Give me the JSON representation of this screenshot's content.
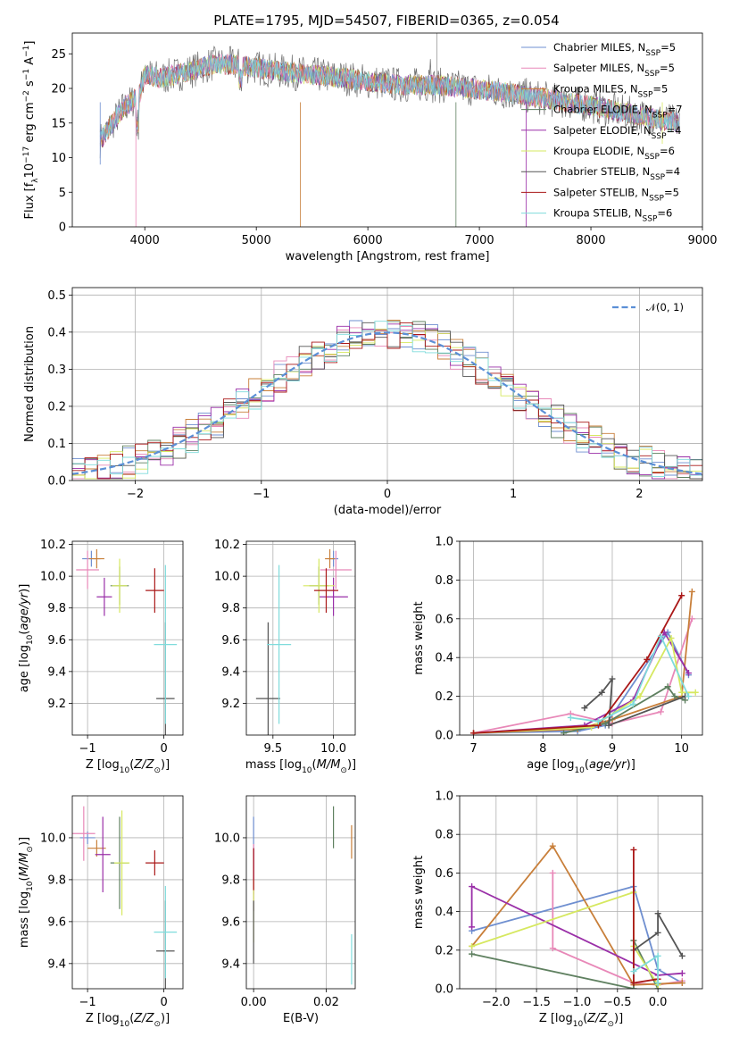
{
  "title": "PLATE=1795, MJD=54507, FIBERID=0365, z=0.054",
  "colors": [
    "#6f8fd0",
    "#e888b8",
    "#c87f3a",
    "#5f8060",
    "#9a2fa8",
    "#d6e860",
    "#555555",
    "#aa1818",
    "#7fdcdc"
  ],
  "chart_data": [
    {
      "id": "spectrum",
      "type": "line",
      "xlabel": "wavelength [Angstrom, rest frame]",
      "ylabel": "Flux [f_λ10^-17 erg cm^-2 s^-1 A^-1]",
      "xlim": [
        3350,
        9000
      ],
      "ylim": [
        0,
        28
      ],
      "xticks": [
        4000,
        5000,
        6000,
        7000,
        8000,
        9000
      ],
      "yticks": [
        0,
        5,
        10,
        15,
        20,
        25
      ],
      "legend_position": "top-right",
      "continuum": {
        "x": [
          3600,
          3800,
          3950,
          4000,
          4150,
          4400,
          4600,
          4800,
          5000,
          5200,
          5500,
          5800,
          6000,
          6300,
          6600,
          6900,
          7200,
          7400,
          7600,
          7800,
          8000,
          8300,
          8600,
          8800
        ],
        "y": [
          12.5,
          17,
          19,
          22,
          21.5,
          22.5,
          23.5,
          23.5,
          23,
          22.5,
          22,
          21.5,
          21,
          20.5,
          20.5,
          20,
          19.5,
          19,
          18.5,
          18,
          17.5,
          16.5,
          15.5,
          15
        ]
      },
      "series": [
        {
          "name": "Chabrier MILES",
          "nssp": "5"
        },
        {
          "name": "Salpeter MILES",
          "nssp": "5"
        },
        {
          "name": "Kroupa MILES",
          "nssp": "5"
        },
        {
          "name": "Chabrier ELODIE",
          "nssp": "7"
        },
        {
          "name": "Salpeter ELODIE",
          "nssp": "4"
        },
        {
          "name": "Kroupa ELODIE",
          "nssp": "6"
        },
        {
          "name": "Chabrier STELIB",
          "nssp": "4"
        },
        {
          "name": "Salpeter STELIB",
          "nssp": "5"
        },
        {
          "name": "Kroupa STELIB",
          "nssp": "6"
        }
      ]
    },
    {
      "id": "residuals",
      "type": "line",
      "xlabel": "(data-model)/error",
      "ylabel": "Normed distribution",
      "xlim": [
        -2.5,
        2.5
      ],
      "ylim": [
        0,
        0.52
      ],
      "xticks": [
        -2,
        -1,
        0,
        1,
        2
      ],
      "yticks": [
        0.0,
        0.1,
        0.2,
        0.3,
        0.4,
        0.5
      ],
      "legend_position": "top-right",
      "legend_label": "𝒩(0, 1)",
      "bin_width": 0.1
    },
    {
      "id": "age_vs_Z",
      "type": "scatter",
      "xlabel": "Z [log10(Z/Z⊙)]",
      "ylabel": "age [log10(age/yr)]",
      "xlim": [
        -1.2,
        0.25
      ],
      "ylim": [
        9.0,
        10.22
      ],
      "xticks": [
        -1,
        0
      ],
      "yticks": [
        9.2,
        9.4,
        9.6,
        9.8,
        10.0,
        10.2
      ],
      "points": [
        {
          "x": -0.95,
          "y": 10.11,
          "xerr": 0.12,
          "yerr": 0.05
        },
        {
          "x": -1.0,
          "y": 10.04,
          "xerr": 0.15,
          "yerr": 0.12
        },
        {
          "x": -0.88,
          "y": 10.11,
          "xerr": 0.1,
          "yerr": 0.06
        },
        {
          "x": -0.58,
          "y": 9.94,
          "xerr": 0.12,
          "yerr": 0.12
        },
        {
          "x": -0.78,
          "y": 9.87,
          "xerr": 0.1,
          "yerr": 0.12
        },
        {
          "x": -0.58,
          "y": 9.94,
          "xerr": 0.1,
          "yerr": 0.17
        },
        {
          "x": 0.02,
          "y": 9.23,
          "xerr": 0.12,
          "yerr": 0.48
        },
        {
          "x": -0.12,
          "y": 9.91,
          "xerr": 0.12,
          "yerr": 0.14
        },
        {
          "x": 0.02,
          "y": 9.57,
          "xerr": 0.15,
          "yerr": 0.5
        }
      ]
    },
    {
      "id": "age_vs_mass",
      "type": "scatter",
      "xlabel": "mass [log10(M/M⊙)]",
      "ylabel": "",
      "xlim": [
        9.28,
        10.18
      ],
      "ylim": [
        9.0,
        10.22
      ],
      "xticks": [
        9.5,
        10.0
      ],
      "yticks": [
        9.2,
        9.4,
        9.6,
        9.8,
        10.0,
        10.2
      ],
      "points": [
        {
          "x": 10.0,
          "y": 10.11,
          "xerr": 0.04,
          "yerr": 0.05
        },
        {
          "x": 10.02,
          "y": 10.04,
          "xerr": 0.13,
          "yerr": 0.12
        },
        {
          "x": 9.97,
          "y": 10.11,
          "xerr": 0.04,
          "yerr": 0.06
        },
        {
          "x": 9.88,
          "y": 9.94,
          "xerr": 0.08,
          "yerr": 0.12
        },
        {
          "x": 10.0,
          "y": 9.87,
          "xerr": 0.12,
          "yerr": 0.12
        },
        {
          "x": 9.88,
          "y": 9.94,
          "xerr": 0.13,
          "yerr": 0.17
        },
        {
          "x": 9.46,
          "y": 9.23,
          "xerr": 0.1,
          "yerr": 0.48
        },
        {
          "x": 9.94,
          "y": 9.91,
          "xerr": 0.1,
          "yerr": 0.14
        },
        {
          "x": 9.55,
          "y": 9.57,
          "xerr": 0.1,
          "yerr": 0.5
        }
      ]
    },
    {
      "id": "weight_vs_age",
      "type": "line",
      "xlabel": "age [log10(age/yr)]",
      "ylabel": "mass weight",
      "xlim": [
        6.8,
        10.3
      ],
      "ylim": [
        0,
        1.0
      ],
      "xticks": [
        7,
        8,
        9,
        10
      ],
      "yticks": [
        0.0,
        0.2,
        0.4,
        0.6,
        0.8,
        1.0
      ],
      "series": [
        {
          "x": [
            7.0,
            8.5,
            8.9,
            9.8,
            10.1
          ],
          "y": [
            0.01,
            0.02,
            0.05,
            0.53,
            0.31
          ]
        },
        {
          "x": [
            7.0,
            8.4,
            9.0,
            9.7,
            10.15
          ],
          "y": [
            0.01,
            0.11,
            0.06,
            0.12,
            0.6
          ]
        },
        {
          "x": [
            7.0,
            8.5,
            9.0,
            10.0,
            10.15
          ],
          "y": [
            0.01,
            0.03,
            0.08,
            0.2,
            0.74
          ]
        },
        {
          "x": [
            8.3,
            8.9,
            9.8,
            9.9,
            10.05
          ],
          "y": [
            0.01,
            0.06,
            0.25,
            0.2,
            0.18
          ]
        },
        {
          "x": [
            7.0,
            8.6,
            9.3,
            9.75,
            10.1
          ],
          "y": [
            0.01,
            0.05,
            0.18,
            0.53,
            0.32
          ]
        },
        {
          "x": [
            7.0,
            8.7,
            9.4,
            9.85,
            10.0,
            10.2
          ],
          "y": [
            0.01,
            0.04,
            0.2,
            0.5,
            0.22,
            0.22
          ]
        },
        {
          "x": [
            8.6,
            8.85,
            9.0,
            8.95,
            10.05
          ],
          "y": [
            0.14,
            0.22,
            0.29,
            0.05,
            0.2
          ]
        },
        {
          "x": [
            7.0,
            8.8,
            9.5,
            10.0
          ],
          "y": [
            0.01,
            0.05,
            0.39,
            0.72
          ]
        },
        {
          "x": [
            8.4,
            8.8,
            9.3,
            9.7,
            10.1
          ],
          "y": [
            0.09,
            0.07,
            0.16,
            0.51,
            0.2
          ]
        }
      ]
    },
    {
      "id": "mass_vs_Z",
      "type": "scatter",
      "xlabel": "Z [log10(Z/Z⊙)]",
      "ylabel": "mass [log10(M/M⊙)]",
      "xlim": [
        -1.2,
        0.25
      ],
      "ylim": [
        9.28,
        10.2
      ],
      "xticks": [
        -1,
        0
      ],
      "yticks": [
        9.4,
        9.6,
        9.8,
        10.0
      ],
      "points": [
        {
          "x": -1.0,
          "y": 10.0,
          "xerr": 0.1,
          "yerr": 0.03
        },
        {
          "x": -1.05,
          "y": 10.02,
          "xerr": 0.15,
          "yerr": 0.13
        },
        {
          "x": -0.88,
          "y": 9.95,
          "xerr": 0.12,
          "yerr": 0.04
        },
        {
          "x": -0.58,
          "y": 9.88,
          "xerr": 0.12,
          "yerr": 0.22
        },
        {
          "x": -0.8,
          "y": 9.92,
          "xerr": 0.1,
          "yerr": 0.18
        },
        {
          "x": -0.55,
          "y": 9.88,
          "xerr": 0.1,
          "yerr": 0.25
        },
        {
          "x": 0.02,
          "y": 9.46,
          "xerr": 0.12,
          "yerr": 0.24
        },
        {
          "x": -0.12,
          "y": 9.88,
          "xerr": 0.12,
          "yerr": 0.06
        },
        {
          "x": 0.02,
          "y": 9.55,
          "xerr": 0.15,
          "yerr": 0.22
        }
      ]
    },
    {
      "id": "ebv",
      "type": "scatter",
      "xlabel": "E(B-V)",
      "ylabel": "",
      "xlim": [
        -0.002,
        0.028
      ],
      "ylim": [
        9.28,
        10.2
      ],
      "xticks": [
        0.0,
        0.02
      ],
      "yticks": [
        9.4,
        9.6,
        9.8,
        10.0
      ],
      "points": [
        {
          "x": 0.0,
          "y": 9.95,
          "xerr": 0,
          "yerr": 0.15
        },
        {
          "x": 0.0,
          "y": 9.85,
          "xerr": 0,
          "yerr": 0.12
        },
        {
          "x": 0.027,
          "y": 9.98,
          "xerr": 0,
          "yerr": 0.08
        },
        {
          "x": 0.022,
          "y": 10.05,
          "xerr": 0,
          "yerr": 0.1
        },
        {
          "x": 0.0,
          "y": 9.8,
          "xerr": 0,
          "yerr": 0.15
        },
        {
          "x": 0.0,
          "y": 9.65,
          "xerr": 0,
          "yerr": 0.15
        },
        {
          "x": 0.0,
          "y": 9.55,
          "xerr": 0,
          "yerr": 0.15
        },
        {
          "x": 0.0,
          "y": 9.85,
          "xerr": 0,
          "yerr": 0.1
        },
        {
          "x": 0.027,
          "y": 9.42,
          "xerr": 0,
          "yerr": 0.12
        }
      ]
    },
    {
      "id": "weight_vs_Z",
      "type": "line",
      "xlabel": "Z [log10(Z/Z⊙)]",
      "ylabel": "mass weight",
      "xlim": [
        -2.45,
        0.55
      ],
      "ylim": [
        0,
        1.0
      ],
      "xticks": [
        -2.0,
        -1.5,
        -1.0,
        -0.5,
        0.0
      ],
      "yticks": [
        0.0,
        0.2,
        0.4,
        0.6,
        0.8,
        1.0
      ],
      "series": [
        {
          "x": [
            -2.3,
            -0.3,
            0.0,
            0.3
          ],
          "y": [
            0.3,
            0.53,
            0.1,
            0.03
          ]
        },
        {
          "x": [
            -1.3,
            -1.3,
            -0.3,
            0.0,
            0.3
          ],
          "y": [
            0.6,
            0.21,
            0.03,
            0.02,
            0.04
          ]
        },
        {
          "x": [
            -2.3,
            -1.3,
            -0.3,
            0.3
          ],
          "y": [
            0.22,
            0.74,
            0.02,
            0.03
          ]
        },
        {
          "x": [
            -2.3,
            -0.3,
            -0.3,
            0.0
          ],
          "y": [
            0.18,
            0.0,
            0.25,
            0.0
          ]
        },
        {
          "x": [
            -2.3,
            -2.3,
            0.0,
            0.3
          ],
          "y": [
            0.32,
            0.53,
            0.07,
            0.08
          ]
        },
        {
          "x": [
            -2.3,
            -0.3,
            -0.3,
            0.0
          ],
          "y": [
            0.22,
            0.5,
            0.22,
            0.02
          ]
        },
        {
          "x": [
            -0.3,
            0.0,
            0.0,
            0.3
          ],
          "y": [
            0.2,
            0.29,
            0.39,
            0.17
          ]
        },
        {
          "x": [
            -0.3,
            -0.3,
            0.0
          ],
          "y": [
            0.72,
            0.03,
            0.05
          ]
        },
        {
          "x": [
            -0.3,
            0.0,
            0.0
          ],
          "y": [
            0.09,
            0.17,
            0.03
          ]
        }
      ]
    }
  ]
}
